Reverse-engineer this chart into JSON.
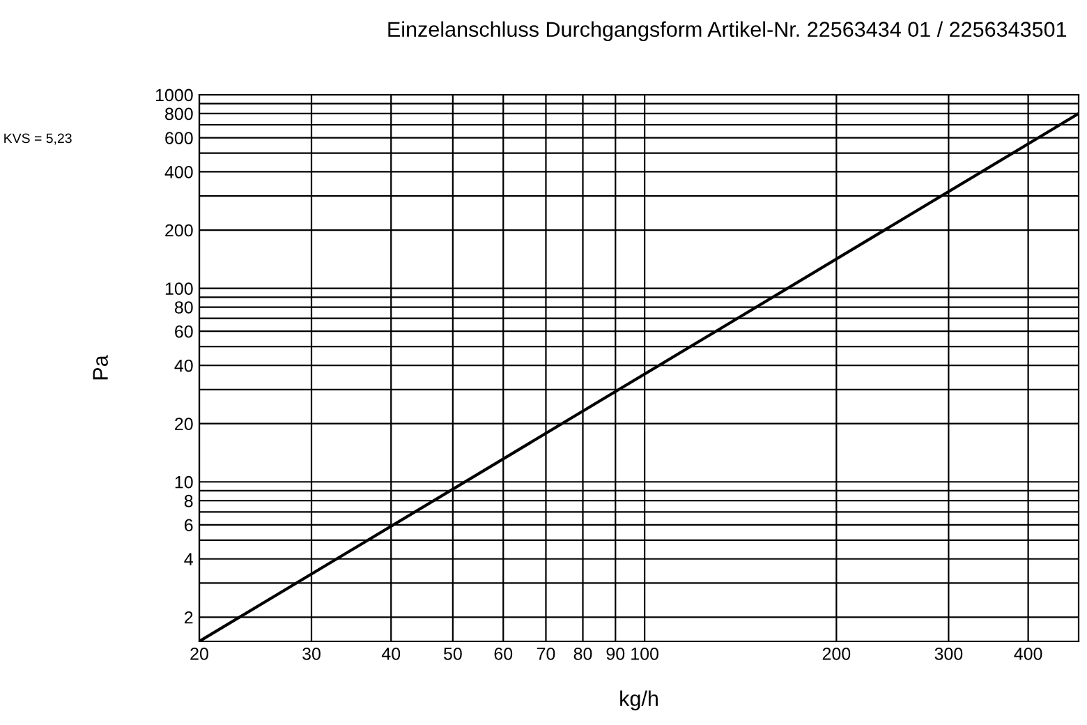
{
  "chart_data": {
    "type": "line",
    "title": "Einzelanschluss Durchgangsform Artikel-Nr. 22563434 01 / 2256343501",
    "xlabel": "kg/h",
    "ylabel": "Pa",
    "annotations": [
      "KVS = 5,23"
    ],
    "log": "xy",
    "grid": true,
    "marker": "none",
    "line_style": "solid",
    "x": [
      20,
      480
    ],
    "series": [
      {
        "color": "#000000",
        "values": [
          1.5,
          800
        ]
      }
    ],
    "xlim": [
      20,
      480
    ],
    "ylim": [
      1.5,
      1000
    ],
    "xticks": [
      20,
      30,
      40,
      50,
      60,
      70,
      80,
      90,
      100,
      200,
      300,
      400
    ],
    "yticks": [
      2,
      {
        "value": 3,
        "label": null
      },
      4,
      {
        "value": 5,
        "label": null
      },
      6,
      {
        "value": 7,
        "label": null
      },
      8,
      {
        "value": 9,
        "label": null
      },
      10,
      20,
      {
        "value": 30,
        "label": null
      },
      40,
      {
        "value": 50,
        "label": null
      },
      60,
      {
        "value": 70,
        "label": null
      },
      80,
      {
        "value": 90,
        "label": null
      },
      100,
      200,
      {
        "value": 300,
        "label": null
      },
      400,
      {
        "value": 500,
        "label": null
      },
      600,
      {
        "value": 700,
        "label": null
      },
      800,
      {
        "value": 900,
        "label": null
      },
      1000
    ]
  }
}
